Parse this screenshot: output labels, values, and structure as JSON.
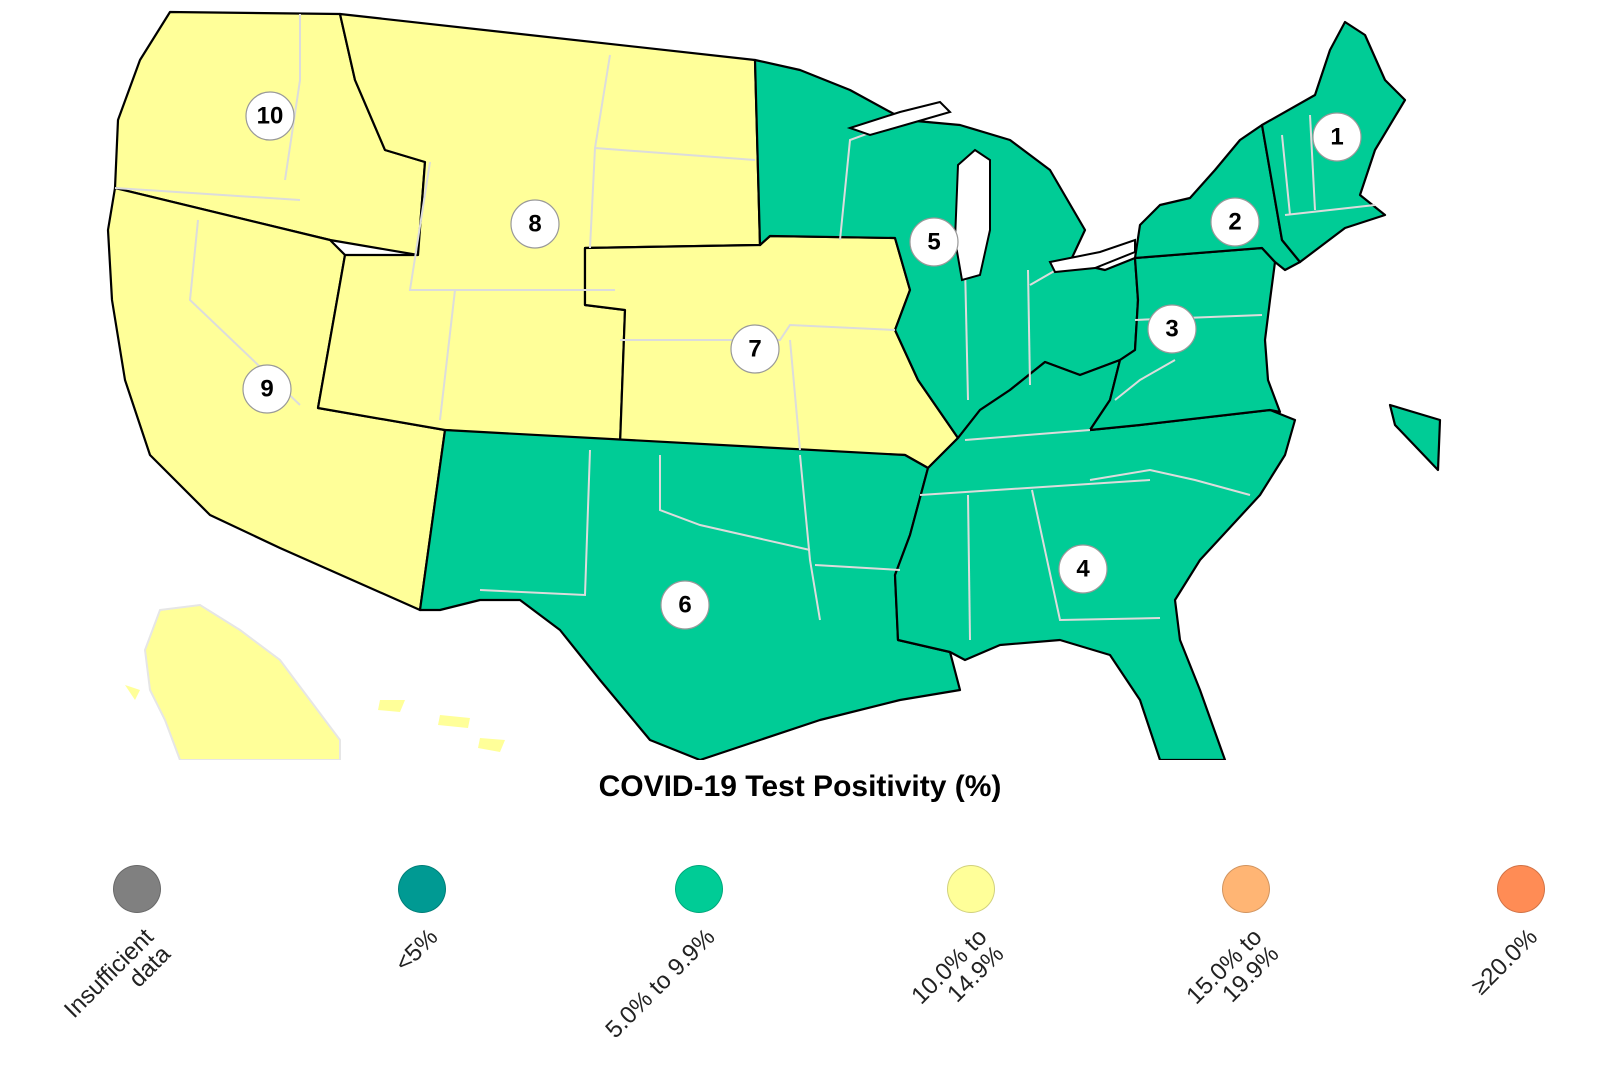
{
  "legend": {
    "title": "COVID-19 Test Positivity (%)",
    "items": [
      {
        "label": "Insufficient\ndata",
        "color": "#808080"
      },
      {
        "label": "<5%",
        "color": "#009a93"
      },
      {
        "label": "5.0% to 9.9%",
        "color": "#00cc96"
      },
      {
        "label": "10.0% to\n14.9%",
        "color": "#ffff99"
      },
      {
        "label": "15.0% to\n19.9%",
        "color": "#ffb574"
      },
      {
        "label": "≥20.0%",
        "color": "#ff8c55"
      }
    ]
  },
  "map": {
    "hhs_regions": [
      {
        "number": "1",
        "category": "5.0% to 9.9%"
      },
      {
        "number": "2",
        "category": "5.0% to 9.9%"
      },
      {
        "number": "3",
        "category": "5.0% to 9.9%"
      },
      {
        "number": "4",
        "category": "5.0% to 9.9%"
      },
      {
        "number": "5",
        "category": "5.0% to 9.9%"
      },
      {
        "number": "6",
        "category": "5.0% to 9.9%"
      },
      {
        "number": "7",
        "category": "10.0% to 14.9%"
      },
      {
        "number": "8",
        "category": "10.0% to 14.9%"
      },
      {
        "number": "9",
        "category": "10.0% to 14.9%"
      },
      {
        "number": "10",
        "category": "10.0% to 14.9%"
      }
    ]
  }
}
